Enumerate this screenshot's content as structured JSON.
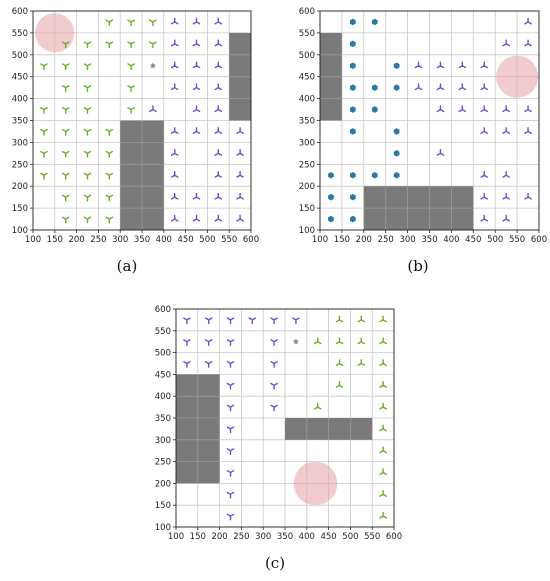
{
  "colors": {
    "grid": "#c8c8c8",
    "frame": "#222222",
    "obstacle": "#7a7a7a",
    "goal": "#e8a0a8",
    "green": "#6aae1e",
    "blue": "#5a55d6",
    "teal": "#2a7aa8",
    "gray_star": "#888888"
  },
  "chart_data": [
    {
      "type": "scatter",
      "caption": "(a)",
      "xlim": [
        100,
        600
      ],
      "ylim": [
        100,
        600
      ],
      "xticks": [
        100,
        150,
        200,
        250,
        300,
        350,
        400,
        450,
        500,
        550,
        600
      ],
      "yticks": [
        100,
        150,
        200,
        250,
        300,
        350,
        400,
        450,
        500,
        550,
        600
      ],
      "grid": true,
      "goal_circle": {
        "x": 150,
        "y": 550,
        "r": 45
      },
      "obstacles": [
        {
          "x0": 300,
          "y0": 100,
          "x1": 400,
          "y1": 350
        },
        {
          "x0": 550,
          "y0": 350,
          "x1": 600,
          "y1": 550
        }
      ],
      "series": [
        {
          "marker": "tri_down",
          "color": "green",
          "points": [
            [
              275,
              575
            ],
            [
              325,
              575
            ],
            [
              375,
              575
            ],
            [
              175,
              525
            ],
            [
              225,
              525
            ],
            [
              275,
              525
            ],
            [
              325,
              525
            ],
            [
              375,
              525
            ],
            [
              125,
              475
            ],
            [
              175,
              475
            ],
            [
              225,
              475
            ],
            [
              325,
              475
            ],
            [
              175,
              425
            ],
            [
              225,
              425
            ],
            [
              325,
              425
            ],
            [
              125,
              375
            ],
            [
              175,
              375
            ],
            [
              225,
              375
            ],
            [
              325,
              375
            ],
            [
              125,
              325
            ],
            [
              175,
              325
            ],
            [
              225,
              325
            ],
            [
              275,
              325
            ],
            [
              125,
              275
            ],
            [
              175,
              275
            ],
            [
              225,
              275
            ],
            [
              275,
              275
            ],
            [
              125,
              225
            ],
            [
              175,
              225
            ],
            [
              225,
              225
            ],
            [
              275,
              225
            ],
            [
              175,
              175
            ],
            [
              225,
              175
            ],
            [
              275,
              175
            ],
            [
              175,
              125
            ],
            [
              225,
              125
            ],
            [
              275,
              125
            ]
          ]
        },
        {
          "marker": "tri_up",
          "color": "blue",
          "points": [
            [
              425,
              575
            ],
            [
              475,
              575
            ],
            [
              525,
              575
            ],
            [
              425,
              525
            ],
            [
              475,
              525
            ],
            [
              525,
              525
            ],
            [
              425,
              475
            ],
            [
              475,
              475
            ],
            [
              525,
              475
            ],
            [
              425,
              425
            ],
            [
              475,
              425
            ],
            [
              525,
              425
            ],
            [
              375,
              375
            ],
            [
              475,
              375
            ],
            [
              525,
              375
            ],
            [
              425,
              325
            ],
            [
              475,
              325
            ],
            [
              525,
              325
            ],
            [
              575,
              325
            ],
            [
              425,
              275
            ],
            [
              525,
              275
            ],
            [
              575,
              275
            ],
            [
              425,
              225
            ],
            [
              525,
              225
            ],
            [
              575,
              225
            ],
            [
              425,
              175
            ],
            [
              475,
              175
            ],
            [
              525,
              175
            ],
            [
              575,
              175
            ],
            [
              425,
              125
            ],
            [
              475,
              125
            ],
            [
              525,
              125
            ],
            [
              575,
              125
            ]
          ]
        },
        {
          "marker": "star",
          "color": "gray_star",
          "points": [
            [
              375,
              475
            ]
          ]
        }
      ]
    },
    {
      "type": "scatter",
      "caption": "(b)",
      "xlim": [
        100,
        600
      ],
      "ylim": [
        100,
        600
      ],
      "xticks": [
        100,
        150,
        200,
        250,
        300,
        350,
        400,
        450,
        500,
        550,
        600
      ],
      "yticks": [
        100,
        150,
        200,
        250,
        300,
        350,
        400,
        450,
        500,
        550,
        600
      ],
      "grid": true,
      "goal_circle": {
        "x": 550,
        "y": 450,
        "r": 48
      },
      "obstacles": [
        {
          "x0": 100,
          "y0": 350,
          "x1": 150,
          "y1": 550
        },
        {
          "x0": 200,
          "y0": 100,
          "x1": 450,
          "y1": 200
        }
      ],
      "series": [
        {
          "marker": "hexagon",
          "color": "teal",
          "points": [
            [
              175,
              575
            ],
            [
              225,
              575
            ],
            [
              175,
              525
            ],
            [
              175,
              475
            ],
            [
              275,
              475
            ],
            [
              175,
              425
            ],
            [
              225,
              425
            ],
            [
              275,
              425
            ],
            [
              175,
              375
            ],
            [
              225,
              375
            ],
            [
              175,
              325
            ],
            [
              275,
              325
            ],
            [
              275,
              275
            ],
            [
              125,
              225
            ],
            [
              175,
              225
            ],
            [
              225,
              225
            ],
            [
              275,
              225
            ],
            [
              125,
              175
            ],
            [
              175,
              175
            ],
            [
              125,
              125
            ],
            [
              175,
              125
            ]
          ]
        },
        {
          "marker": "tri_up",
          "color": "blue",
          "points": [
            [
              575,
              575
            ],
            [
              525,
              525
            ],
            [
              575,
              525
            ],
            [
              325,
              475
            ],
            [
              375,
              475
            ],
            [
              425,
              475
            ],
            [
              475,
              475
            ],
            [
              325,
              425
            ],
            [
              375,
              425
            ],
            [
              425,
              425
            ],
            [
              475,
              425
            ],
            [
              375,
              375
            ],
            [
              425,
              375
            ],
            [
              475,
              375
            ],
            [
              525,
              375
            ],
            [
              575,
              375
            ],
            [
              475,
              325
            ],
            [
              525,
              325
            ],
            [
              575,
              325
            ],
            [
              375,
              275
            ],
            [
              475,
              225
            ],
            [
              525,
              225
            ],
            [
              475,
              175
            ],
            [
              525,
              175
            ],
            [
              575,
              175
            ],
            [
              475,
              125
            ],
            [
              525,
              125
            ]
          ]
        }
      ]
    },
    {
      "type": "scatter",
      "caption": "(c)",
      "xlim": [
        100,
        600
      ],
      "ylim": [
        100,
        600
      ],
      "xticks": [
        100,
        150,
        200,
        250,
        300,
        350,
        400,
        450,
        500,
        550,
        600
      ],
      "yticks": [
        100,
        150,
        200,
        250,
        300,
        350,
        400,
        450,
        500,
        550,
        600
      ],
      "grid": true,
      "goal_circle": {
        "x": 420,
        "y": 200,
        "r": 50
      },
      "obstacles": [
        {
          "x0": 100,
          "y0": 200,
          "x1": 200,
          "y1": 450
        },
        {
          "x0": 350,
          "y0": 300,
          "x1": 550,
          "y1": 350
        }
      ],
      "series": [
        {
          "marker": "tri_down",
          "color": "blue",
          "points": [
            [
              125,
              575
            ],
            [
              175,
              575
            ],
            [
              225,
              575
            ],
            [
              275,
              575
            ],
            [
              325,
              575
            ],
            [
              375,
              575
            ],
            [
              125,
              525
            ],
            [
              175,
              525
            ],
            [
              225,
              525
            ],
            [
              325,
              525
            ],
            [
              125,
              475
            ],
            [
              175,
              475
            ],
            [
              225,
              475
            ],
            [
              325,
              475
            ],
            [
              225,
              425
            ],
            [
              325,
              425
            ],
            [
              225,
              375
            ],
            [
              325,
              375
            ],
            [
              225,
              325
            ],
            [
              225,
              275
            ],
            [
              225,
              225
            ],
            [
              225,
              175
            ],
            [
              225,
              125
            ]
          ]
        },
        {
          "marker": "star",
          "color": "gray_star",
          "points": [
            [
              375,
              525
            ]
          ]
        },
        {
          "marker": "tri_up",
          "color": "green",
          "points": [
            [
              475,
              575
            ],
            [
              525,
              575
            ],
            [
              575,
              575
            ],
            [
              425,
              525
            ],
            [
              475,
              525
            ],
            [
              525,
              525
            ],
            [
              575,
              525
            ],
            [
              475,
              475
            ],
            [
              525,
              475
            ],
            [
              575,
              475
            ],
            [
              475,
              425
            ],
            [
              575,
              425
            ],
            [
              425,
              375
            ],
            [
              575,
              375
            ],
            [
              575,
              325
            ],
            [
              575,
              275
            ],
            [
              575,
              225
            ],
            [
              575,
              175
            ],
            [
              575,
              125
            ]
          ]
        }
      ]
    }
  ]
}
